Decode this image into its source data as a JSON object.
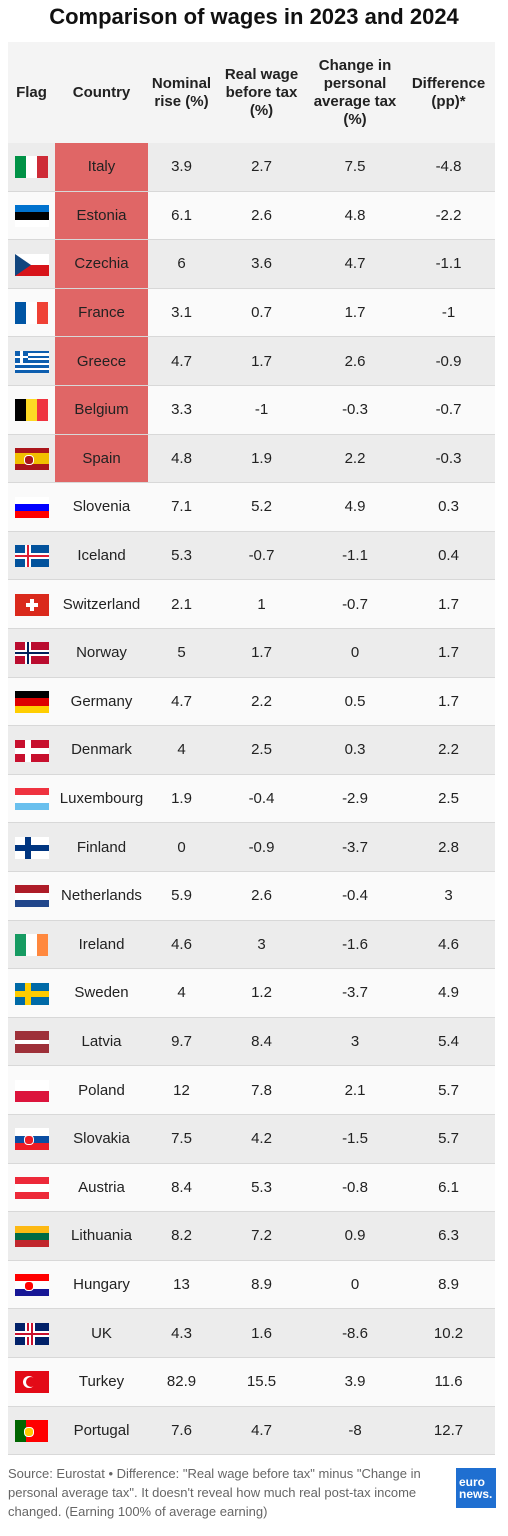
{
  "title": "Comparison of wages in 2023 and 2024",
  "table": {
    "headers": [
      "Flag",
      "Country",
      "Nominal rise (%)",
      "Real wage before tax (%)",
      "Change in personal average tax (%)",
      "Difference (pp)*"
    ],
    "highlighted_rows": [
      0,
      1,
      2,
      3,
      4,
      5,
      6
    ],
    "highlight_color": "#e06666",
    "rows": [
      [
        "Italy",
        3.9,
        2.7,
        7.5,
        -4.8
      ],
      [
        "Estonia",
        6.1,
        2.6,
        4.8,
        -2.2
      ],
      [
        "Czechia",
        6,
        3.6,
        4.7,
        -1.1
      ],
      [
        "France",
        3.1,
        0.7,
        1.7,
        -1
      ],
      [
        "Greece",
        4.7,
        1.7,
        2.6,
        -0.9
      ],
      [
        "Belgium",
        3.3,
        -1,
        -0.3,
        -0.7
      ],
      [
        "Spain",
        4.8,
        1.9,
        2.2,
        -0.3
      ],
      [
        "Slovenia",
        7.1,
        5.2,
        4.9,
        0.3
      ],
      [
        "Iceland",
        5.3,
        -0.7,
        -1.1,
        0.4
      ],
      [
        "Switzerland",
        2.1,
        1,
        -0.7,
        1.7
      ],
      [
        "Norway",
        5,
        1.7,
        0,
        1.7
      ],
      [
        "Germany",
        4.7,
        2.2,
        0.5,
        1.7
      ],
      [
        "Denmark",
        4,
        2.5,
        0.3,
        2.2
      ],
      [
        "Luxembourg",
        1.9,
        -0.4,
        -2.9,
        2.5
      ],
      [
        "Finland",
        0,
        -0.9,
        -3.7,
        2.8
      ],
      [
        "Netherlands",
        5.9,
        2.6,
        -0.4,
        3
      ],
      [
        "Ireland",
        4.6,
        3,
        -1.6,
        4.6
      ],
      [
        "Sweden",
        4,
        1.2,
        -3.7,
        4.9
      ],
      [
        "Latvia",
        9.7,
        8.4,
        3,
        5.4
      ],
      [
        "Poland",
        12,
        7.8,
        2.1,
        5.7
      ],
      [
        "Slovakia",
        7.5,
        4.2,
        -1.5,
        5.7
      ],
      [
        "Austria",
        8.4,
        5.3,
        -0.8,
        6.1
      ],
      [
        "Lithuania",
        8.2,
        7.2,
        0.9,
        6.3
      ],
      [
        "Hungary",
        13,
        8.9,
        0,
        8.9
      ],
      [
        "UK",
        4.3,
        1.6,
        -8.6,
        10.2
      ],
      [
        "Turkey",
        82.9,
        15.5,
        3.9,
        11.6
      ],
      [
        "Portugal",
        7.6,
        4.7,
        -8,
        12.7
      ]
    ]
  },
  "footer": {
    "source": "Source: Eurostat • Difference: \"Real wage before tax\" minus \"Change in personal average tax\". It doesn't reveal how much real post-tax income changed. (Earning 100% of average earning)",
    "logo": [
      "euro",
      "news."
    ]
  }
}
